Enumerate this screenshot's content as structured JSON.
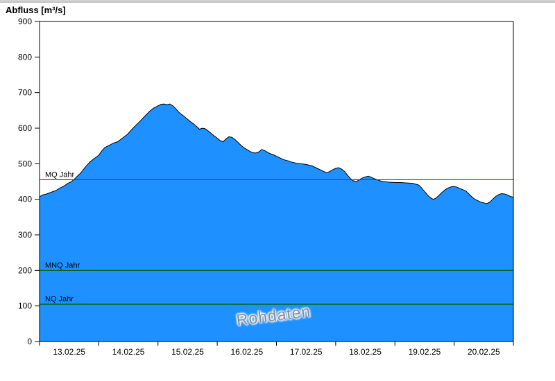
{
  "chart_data": {
    "type": "area",
    "title": "Abfluss [m³/s]",
    "watermark": "Rohdaten",
    "ylim": [
      0,
      900
    ],
    "y_ticks": [
      0,
      100,
      200,
      300,
      400,
      500,
      600,
      700,
      800,
      900
    ],
    "x_labels": [
      "13.02.25",
      "14.02.25",
      "15.02.25",
      "16.02.25",
      "17.02.25",
      "18.02.25",
      "19.02.25",
      "20.02.25"
    ],
    "x_range_days": [
      0,
      8
    ],
    "fill_color": "#1e90ff",
    "line_color": "#000000",
    "reference_lines": [
      {
        "label": "MQ Jahr",
        "value": 455,
        "color": "#007a00"
      },
      {
        "label": "MNQ Jahr",
        "value": 200,
        "color": "#006000"
      },
      {
        "label": "NQ Jahr",
        "value": 105,
        "color": "#006000"
      }
    ],
    "series": [
      {
        "name": "Abfluss Rohdaten",
        "points": [
          [
            0.0,
            407
          ],
          [
            0.05,
            412
          ],
          [
            0.12,
            415
          ],
          [
            0.2,
            420
          ],
          [
            0.28,
            425
          ],
          [
            0.35,
            432
          ],
          [
            0.42,
            438
          ],
          [
            0.48,
            445
          ],
          [
            0.52,
            448
          ],
          [
            0.58,
            455
          ],
          [
            0.62,
            462
          ],
          [
            0.7,
            475
          ],
          [
            0.78,
            492
          ],
          [
            0.85,
            505
          ],
          [
            0.92,
            514
          ],
          [
            1.0,
            524
          ],
          [
            1.05,
            536
          ],
          [
            1.1,
            545
          ],
          [
            1.18,
            552
          ],
          [
            1.25,
            558
          ],
          [
            1.32,
            562
          ],
          [
            1.4,
            572
          ],
          [
            1.48,
            582
          ],
          [
            1.55,
            595
          ],
          [
            1.62,
            607
          ],
          [
            1.7,
            620
          ],
          [
            1.78,
            634
          ],
          [
            1.85,
            646
          ],
          [
            1.92,
            656
          ],
          [
            2.0,
            663
          ],
          [
            2.05,
            667
          ],
          [
            2.1,
            668
          ],
          [
            2.15,
            666
          ],
          [
            2.2,
            668
          ],
          [
            2.25,
            663
          ],
          [
            2.3,
            655
          ],
          [
            2.35,
            645
          ],
          [
            2.42,
            636
          ],
          [
            2.5,
            625
          ],
          [
            2.55,
            618
          ],
          [
            2.6,
            612
          ],
          [
            2.65,
            605
          ],
          [
            2.7,
            597
          ],
          [
            2.75,
            600
          ],
          [
            2.8,
            598
          ],
          [
            2.85,
            592
          ],
          [
            2.9,
            585
          ],
          [
            2.95,
            578
          ],
          [
            3.0,
            572
          ],
          [
            3.05,
            565
          ],
          [
            3.1,
            562
          ],
          [
            3.15,
            570
          ],
          [
            3.2,
            576
          ],
          [
            3.25,
            574
          ],
          [
            3.3,
            568
          ],
          [
            3.35,
            560
          ],
          [
            3.4,
            552
          ],
          [
            3.45,
            545
          ],
          [
            3.5,
            540
          ],
          [
            3.55,
            535
          ],
          [
            3.6,
            531
          ],
          [
            3.65,
            530
          ],
          [
            3.7,
            533
          ],
          [
            3.75,
            540
          ],
          [
            3.8,
            537
          ],
          [
            3.85,
            532
          ],
          [
            3.9,
            528
          ],
          [
            3.95,
            525
          ],
          [
            4.0,
            521
          ],
          [
            4.05,
            517
          ],
          [
            4.1,
            513
          ],
          [
            4.15,
            510
          ],
          [
            4.2,
            508
          ],
          [
            4.25,
            505
          ],
          [
            4.3,
            503
          ],
          [
            4.35,
            501
          ],
          [
            4.4,
            500
          ],
          [
            4.45,
            499
          ],
          [
            4.5,
            498
          ],
          [
            4.55,
            496
          ],
          [
            4.6,
            494
          ],
          [
            4.65,
            490
          ],
          [
            4.7,
            486
          ],
          [
            4.75,
            482
          ],
          [
            4.8,
            478
          ],
          [
            4.85,
            475
          ],
          [
            4.9,
            478
          ],
          [
            4.95,
            483
          ],
          [
            5.0,
            487
          ],
          [
            5.05,
            489
          ],
          [
            5.1,
            485
          ],
          [
            5.15,
            478
          ],
          [
            5.2,
            468
          ],
          [
            5.25,
            458
          ],
          [
            5.3,
            452
          ],
          [
            5.35,
            450
          ],
          [
            5.4,
            455
          ],
          [
            5.45,
            460
          ],
          [
            5.5,
            463
          ],
          [
            5.55,
            465
          ],
          [
            5.6,
            462
          ],
          [
            5.65,
            458
          ],
          [
            5.7,
            455
          ],
          [
            5.75,
            452
          ],
          [
            5.8,
            450
          ],
          [
            5.85,
            449
          ],
          [
            5.9,
            448
          ],
          [
            6.0,
            447
          ],
          [
            6.1,
            447
          ],
          [
            6.2,
            446
          ],
          [
            6.3,
            445
          ],
          [
            6.4,
            440
          ],
          [
            6.45,
            432
          ],
          [
            6.5,
            422
          ],
          [
            6.55,
            412
          ],
          [
            6.6,
            404
          ],
          [
            6.65,
            400
          ],
          [
            6.7,
            404
          ],
          [
            6.75,
            412
          ],
          [
            6.8,
            420
          ],
          [
            6.85,
            427
          ],
          [
            6.9,
            432
          ],
          [
            6.95,
            435
          ],
          [
            7.0,
            436
          ],
          [
            7.05,
            434
          ],
          [
            7.1,
            430
          ],
          [
            7.15,
            427
          ],
          [
            7.2,
            423
          ],
          [
            7.25,
            415
          ],
          [
            7.3,
            407
          ],
          [
            7.35,
            400
          ],
          [
            7.4,
            396
          ],
          [
            7.45,
            392
          ],
          [
            7.5,
            390
          ],
          [
            7.55,
            388
          ],
          [
            7.6,
            392
          ],
          [
            7.65,
            400
          ],
          [
            7.7,
            408
          ],
          [
            7.75,
            413
          ],
          [
            7.8,
            416
          ],
          [
            7.85,
            415
          ],
          [
            7.9,
            412
          ],
          [
            7.95,
            408
          ],
          [
            8.0,
            406
          ]
        ]
      }
    ]
  }
}
